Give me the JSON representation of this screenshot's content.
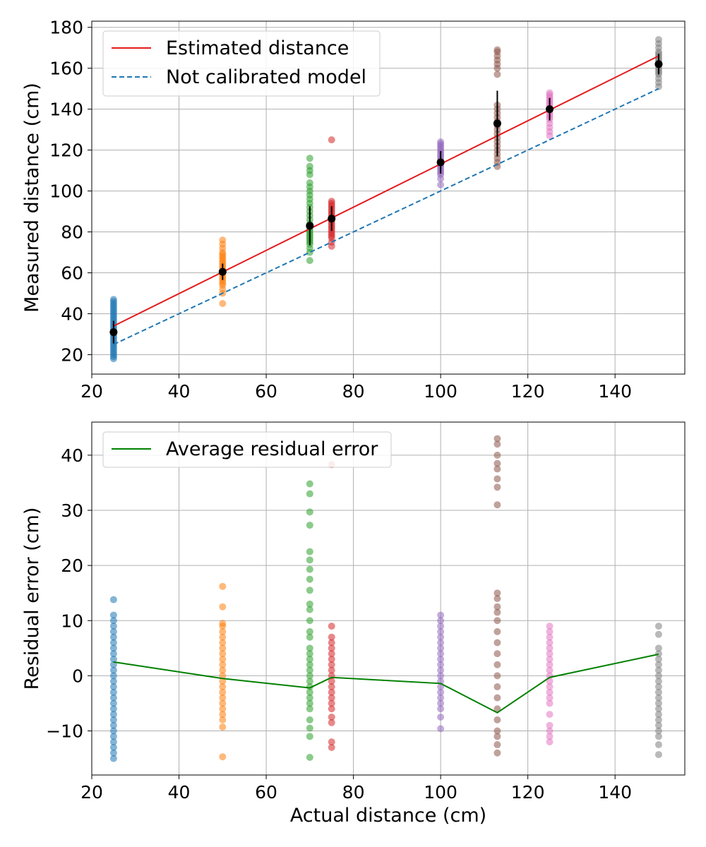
{
  "chart_data": [
    {
      "type": "scatter",
      "xlabel": "",
      "ylabel": "Measured distance (cm)",
      "xlim": [
        20,
        156
      ],
      "ylim": [
        10.5,
        183
      ],
      "xticks": [
        20,
        40,
        60,
        80,
        100,
        120,
        140
      ],
      "yticks": [
        20,
        40,
        60,
        80,
        100,
        120,
        140,
        160,
        180
      ],
      "grid": true,
      "legend_position": "top-left",
      "series": [
        {
          "name": "Estimated distance",
          "type": "line",
          "color": "#e41a1c",
          "style": "solid",
          "x": [
            25,
            150
          ],
          "y": [
            34,
            166
          ]
        },
        {
          "name": "Not calibrated model",
          "type": "line",
          "color": "#1f77b4",
          "style": "dashed",
          "x": [
            25,
            150
          ],
          "y": [
            25,
            150
          ]
        }
      ],
      "scatter_groups": [
        {
          "x": 25,
          "color": "#1f77b4",
          "y": [
            18,
            19,
            20,
            21,
            22,
            23,
            24,
            25,
            26,
            27,
            28,
            29,
            30,
            31,
            32,
            33,
            34,
            35,
            36,
            37,
            38,
            39,
            40,
            41,
            42,
            43,
            44,
            45,
            46,
            47
          ]
        },
        {
          "x": 50,
          "color": "#ff7f0e",
          "y": [
            45,
            50,
            52,
            54,
            55,
            56,
            57,
            58,
            59,
            60,
            61,
            62,
            63,
            64,
            65,
            66,
            67,
            68,
            69,
            70,
            72,
            74,
            76
          ]
        },
        {
          "x": 70,
          "color": "#2ca02c",
          "y": [
            66,
            70,
            72,
            74,
            75,
            76,
            77,
            78,
            79,
            80,
            81,
            82,
            84,
            86,
            88,
            90,
            92,
            94,
            96,
            98,
            100,
            102,
            104,
            108,
            110,
            112,
            116
          ]
        },
        {
          "x": 75,
          "color": "#d62728",
          "y": [
            73,
            75,
            77,
            78,
            79,
            80,
            81,
            82,
            83,
            84,
            85,
            86,
            87,
            88,
            89,
            90,
            91,
            92,
            93,
            94,
            95,
            125
          ]
        },
        {
          "x": 100,
          "color": "#9467bd",
          "y": [
            103,
            106,
            108,
            109,
            110,
            111,
            112,
            113,
            114,
            115,
            116,
            117,
            118,
            119,
            120,
            121,
            122,
            123,
            124
          ]
        },
        {
          "x": 113,
          "color": "#8c564b",
          "y": [
            112,
            114,
            116,
            118,
            120,
            122,
            124,
            126,
            128,
            130,
            132,
            134,
            136,
            138,
            140,
            142,
            157,
            160,
            162,
            164,
            166,
            168,
            169
          ]
        },
        {
          "x": 125,
          "color": "#e377c2",
          "y": [
            127,
            129,
            131,
            133,
            135,
            136,
            137,
            138,
            139,
            140,
            141,
            142,
            143,
            144,
            145,
            146,
            147,
            148
          ]
        },
        {
          "x": 150,
          "color": "#7f7f7f",
          "y": [
            151,
            153,
            155,
            157,
            158,
            159,
            160,
            161,
            162,
            163,
            164,
            165,
            166,
            167,
            168,
            170,
            172,
            174
          ]
        }
      ],
      "errorbars": {
        "color": "#000000",
        "x": [
          25,
          50,
          70,
          75,
          100,
          113,
          125,
          150
        ],
        "y": [
          31,
          60.5,
          83,
          86.5,
          114,
          133,
          140,
          162
        ],
        "yerr": [
          5.5,
          4,
          9.5,
          6,
          5.5,
          16,
          5.5,
          5
        ]
      }
    },
    {
      "type": "scatter",
      "xlabel": "Actual distance (cm)",
      "ylabel": "Residual error (cm)",
      "xlim": [
        20,
        156
      ],
      "ylim": [
        -18,
        46
      ],
      "xticks": [
        20,
        40,
        60,
        80,
        100,
        120,
        140
      ],
      "yticks": [
        -10,
        0,
        10,
        20,
        30,
        40
      ],
      "grid": true,
      "legend_position": "top-left",
      "series": [
        {
          "name": "Average residual error",
          "type": "line",
          "color": "#008000",
          "style": "solid",
          "x": [
            25,
            50,
            70,
            75,
            100,
            113,
            125,
            150
          ],
          "y": [
            2.5,
            -0.5,
            -2.2,
            -0.3,
            -1.4,
            -6.7,
            -0.3,
            3.9
          ]
        }
      ],
      "scatter_groups": [
        {
          "x": 25,
          "color": "#1f77b4",
          "y": [
            -15,
            -14,
            -13,
            -12,
            -11,
            -10,
            -9,
            -8,
            -7,
            -6,
            -5,
            -4,
            -3,
            -2,
            -1,
            0,
            1,
            2,
            3,
            4,
            5,
            6,
            7,
            8,
            9,
            10,
            11,
            13.8
          ]
        },
        {
          "x": 50,
          "color": "#ff7f0e",
          "y": [
            -14.7,
            -9.3,
            -8,
            -7,
            -6,
            -5,
            -4,
            -3,
            -2,
            -1,
            0,
            1,
            2,
            3,
            4,
            5,
            6,
            7,
            8,
            9,
            9.5,
            12.5,
            16.2
          ]
        },
        {
          "x": 70,
          "color": "#2ca02c",
          "y": [
            -14.8,
            -11,
            -9.5,
            -8,
            -6,
            -5,
            -4,
            -3,
            -2,
            -1,
            0,
            1,
            2,
            3,
            4,
            5,
            7,
            8,
            10,
            12,
            13,
            15.5,
            17.5,
            19.3,
            21,
            22.5,
            27.3,
            29.7,
            33,
            34.8
          ]
        },
        {
          "x": 75,
          "color": "#d62728",
          "y": [
            -13,
            -12,
            -8.5,
            -7.5,
            -6,
            -5,
            -4,
            -3,
            -2,
            -1,
            0,
            1,
            2,
            3,
            4,
            5,
            6,
            7,
            9,
            38.3
          ]
        },
        {
          "x": 100,
          "color": "#9467bd",
          "y": [
            -9.6,
            -7.5,
            -6,
            -5,
            -4,
            -3,
            -2,
            -1,
            0,
            1,
            2,
            3,
            4,
            5,
            6,
            7,
            8,
            9,
            10,
            11
          ]
        },
        {
          "x": 113,
          "color": "#8c564b",
          "y": [
            -14,
            -12.5,
            -11,
            -10,
            -8,
            -6,
            -4,
            -2,
            0,
            2,
            4,
            6,
            8,
            10,
            11.5,
            12.5,
            14,
            15,
            31,
            34.2,
            35.7,
            37.5,
            38.5,
            40,
            42,
            43
          ]
        },
        {
          "x": 125,
          "color": "#e377c2",
          "y": [
            -12,
            -11,
            -10,
            -9,
            -7,
            -5,
            -4,
            -3,
            -2,
            -1,
            0,
            1,
            2,
            3,
            4,
            5,
            6,
            7,
            8,
            9
          ]
        },
        {
          "x": 150,
          "color": "#7f7f7f",
          "y": [
            -14.3,
            -12.5,
            -11,
            -10,
            -9,
            -8,
            -7,
            -6,
            -5,
            -4,
            -3,
            -2,
            -1,
            0,
            1,
            2,
            3,
            4,
            5,
            7.5,
            9
          ]
        }
      ]
    }
  ]
}
